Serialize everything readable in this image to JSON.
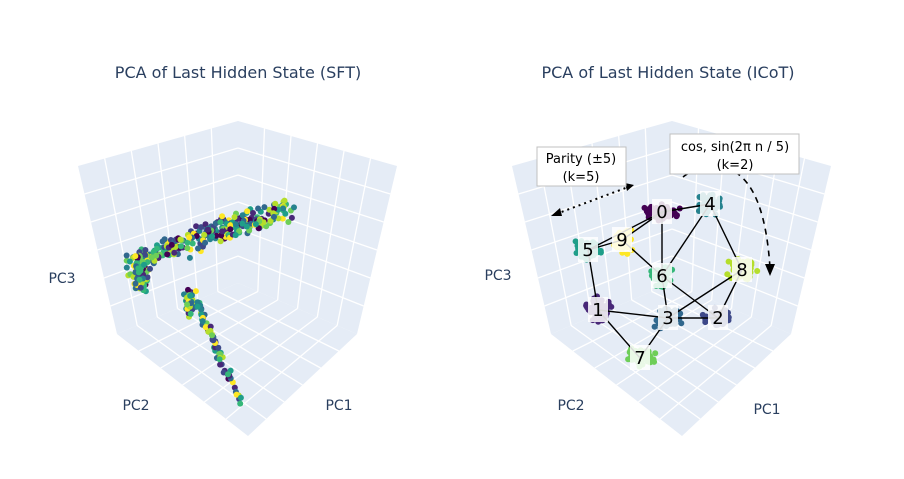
{
  "chart_data": [
    {
      "type": "scatter",
      "title": "PCA of Last Hidden State (SFT)",
      "axes": {
        "x": "PC1",
        "y": "PC2",
        "z": "PC3"
      },
      "colorscale": "viridis",
      "projection": "3d",
      "description_visible": "mixed-color point cloud with no clustering by digit"
    },
    {
      "type": "scatter",
      "title": "PCA of Last Hidden State (ICoT)",
      "axes": {
        "x": "PC1",
        "y": "PC2",
        "z": "PC3"
      },
      "colorscale": "viridis",
      "projection": "3d",
      "clusters": [
        {
          "label": "0",
          "color": "#440154"
        },
        {
          "label": "1",
          "color": "#482878"
        },
        {
          "label": "2",
          "color": "#3e4989"
        },
        {
          "label": "3",
          "color": "#31688e"
        },
        {
          "label": "4",
          "color": "#26828e"
        },
        {
          "label": "5",
          "color": "#1f9e89"
        },
        {
          "label": "6",
          "color": "#35b779"
        },
        {
          "label": "7",
          "color": "#6ece58"
        },
        {
          "label": "8",
          "color": "#b5de2b"
        },
        {
          "label": "9",
          "color": "#fde725"
        }
      ],
      "annotations": [
        {
          "line1": "Parity (±5)",
          "line2": "(k=5)"
        },
        {
          "line1": "cos, sin(2π n / 5)",
          "line2": "(k=2)"
        }
      ]
    }
  ]
}
